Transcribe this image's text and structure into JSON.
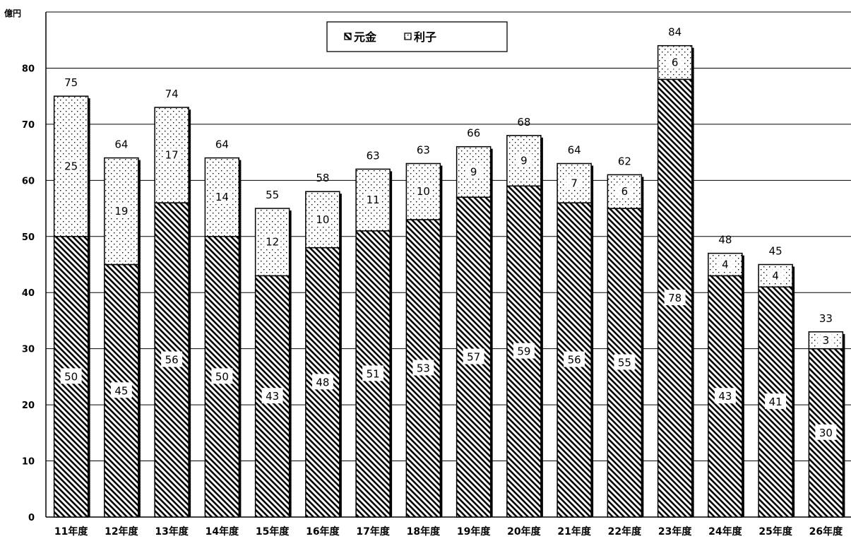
{
  "chart_data": {
    "type": "bar",
    "stacked": true,
    "title": "",
    "xlabel": "",
    "ylabel": "億円",
    "ylim": [
      0,
      90
    ],
    "yticks": [
      0,
      10,
      20,
      30,
      40,
      50,
      60,
      70,
      80
    ],
    "grid": true,
    "legend_position": "top-center",
    "categories": [
      "11年度",
      "12年度",
      "13年度",
      "14年度",
      "15年度",
      "16年度",
      "17年度",
      "18年度",
      "19年度",
      "20年度",
      "21年度",
      "22年度",
      "23年度",
      "24年度",
      "25年度",
      "26年度"
    ],
    "series": [
      {
        "name": "元金",
        "pattern": "diagonal-hatch",
        "values": [
          50,
          45,
          56,
          50,
          43,
          48,
          51,
          53,
          57,
          59,
          56,
          55,
          78,
          43,
          41,
          30
        ]
      },
      {
        "name": "利子",
        "pattern": "dots",
        "values": [
          25,
          19,
          17,
          14,
          12,
          10,
          11,
          10,
          9,
          9,
          7,
          6,
          6,
          4,
          4,
          3
        ]
      }
    ],
    "totals": [
      75,
      64,
      74,
      64,
      55,
      58,
      63,
      63,
      66,
      68,
      64,
      62,
      84,
      48,
      45,
      33
    ]
  }
}
